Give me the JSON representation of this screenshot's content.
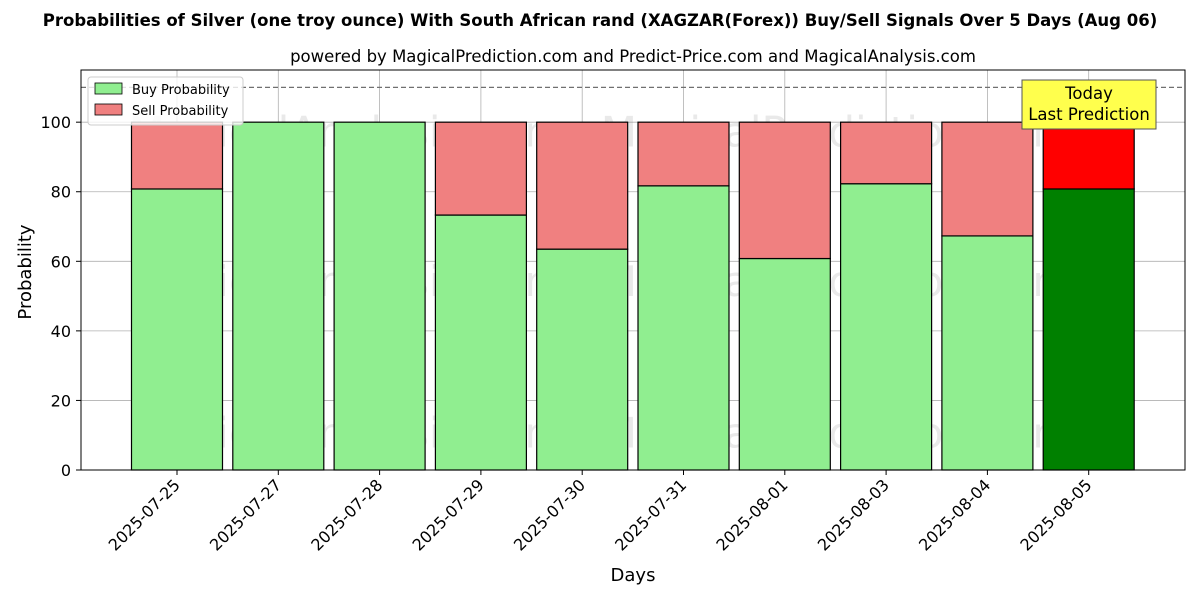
{
  "header": {
    "title": "Probabilities of Silver (one troy ounce) With South African rand (XAGZAR(Forex)) Buy/Sell Signals Over 5 Days (Aug 06)",
    "subtitle": "powered by MagicalPrediction.com and Predict-Price.com and MagicalAnalysis.com"
  },
  "watermarks": [
    "MagicalAnalysis.com",
    "MagicalPrediction.com"
  ],
  "annotation": {
    "line1": "Today",
    "line2": "Last Prediction"
  },
  "colors": {
    "buy": "#90ee90",
    "sell": "#f08080",
    "buy_highlight": "#008000",
    "sell_highlight": "#ff0000",
    "annotation_bg": "#ffff4d"
  },
  "chart_data": {
    "type": "bar",
    "stacked": true,
    "categories": [
      "2025-07-25",
      "2025-07-27",
      "2025-07-28",
      "2025-07-29",
      "2025-07-30",
      "2025-07-31",
      "2025-08-01",
      "2025-08-03",
      "2025-08-04",
      "2025-08-05"
    ],
    "series": [
      {
        "name": "Buy Probability",
        "values": [
          80.8,
          100,
          100,
          73.3,
          63.5,
          81.7,
          60.8,
          82.3,
          67.3,
          80.8
        ]
      },
      {
        "name": "Sell Probability",
        "values": [
          19.2,
          0,
          0,
          26.7,
          36.5,
          18.3,
          39.2,
          17.7,
          32.7,
          19.2
        ]
      }
    ],
    "highlighted_category": "2025-08-05",
    "xlabel": "Days",
    "ylabel": "Probability",
    "ylim": [
      0,
      115
    ],
    "yticks": [
      0,
      20,
      40,
      60,
      80,
      100
    ],
    "reference_line": 110,
    "grid": true,
    "legend_position": "top-left"
  }
}
